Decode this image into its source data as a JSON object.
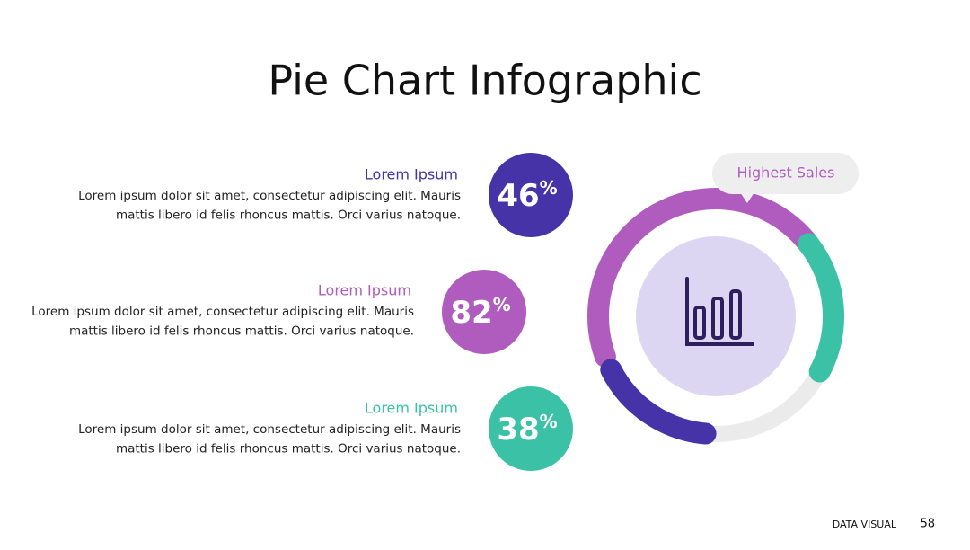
{
  "title": "Pie Chart Infographic",
  "items": [
    {
      "heading": "Lorem Ipsum",
      "body": [
        "Lorem ipsum dolor sit amet, consectetur adipiscing elit. Mauris",
        "mattis libero id felis rhoncus mattis. Orci varius natoque."
      ],
      "value": 46,
      "unit": "%"
    },
    {
      "heading": "Lorem Ipsum",
      "body": [
        "Lorem ipsum dolor sit amet, consectetur adipiscing elit. Mauris",
        "mattis libero id felis rhoncus mattis. Orci varius natoque."
      ],
      "value": 82,
      "unit": "%"
    },
    {
      "heading": "Lorem Ipsum",
      "body": [
        "Lorem ipsum dolor sit amet, consectetur adipiscing elit. Mauris",
        "mattis libero id felis rhoncus mattis. Orci varius natoque."
      ],
      "value": 38,
      "unit": "%"
    }
  ],
  "callout": "Highest Sales",
  "footer": {
    "label": "DATA VISUAL",
    "page": "58"
  }
}
